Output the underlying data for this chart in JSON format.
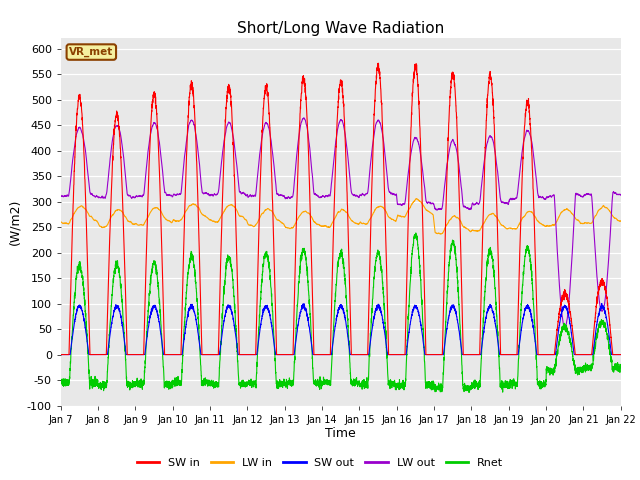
{
  "title": "Short/Long Wave Radiation",
  "xlabel": "Time",
  "ylabel": "(W/m2)",
  "ylim": [
    -100,
    620
  ],
  "colors": {
    "SW_in": "#ff0000",
    "LW_in": "#ffa500",
    "SW_out": "#0000ff",
    "LW_out": "#9900cc",
    "Rnet": "#00cc00"
  },
  "legend_labels": [
    "SW in",
    "LW in",
    "SW out",
    "LW out",
    "Rnet"
  ],
  "yticks": [
    -100,
    -50,
    0,
    50,
    100,
    150,
    200,
    250,
    300,
    350,
    400,
    450,
    500,
    550,
    600
  ],
  "xtick_labels": [
    "Jan 7",
    "Jan 8",
    "Jan 9",
    "Jan 10",
    "Jan 11",
    "Jan 12",
    "Jan 13",
    "Jan 14",
    "Jan 15",
    "Jan 16",
    "Jan 17",
    "Jan 18",
    "Jan 19",
    "Jan 20",
    "Jan 21",
    "Jan 22"
  ],
  "annotation_text": "VR_met",
  "plot_bg_color": "#e8e8e8",
  "fig_bg_color": "#ffffff",
  "n_days": 15,
  "pts_per_day": 288,
  "SW_in_peaks": [
    505,
    470,
    510,
    530,
    525,
    525,
    540,
    535,
    565,
    565,
    550,
    545,
    495,
    120,
    145
  ],
  "LW_in_base": [
    265,
    258,
    262,
    270,
    268,
    260,
    255,
    258,
    265,
    278,
    245,
    250,
    255,
    260,
    265
  ],
  "LW_out_base": [
    315,
    312,
    315,
    318,
    318,
    315,
    313,
    315,
    318,
    300,
    290,
    300,
    310,
    315,
    318
  ],
  "LW_out_peaks": [
    440,
    445,
    450,
    455,
    450,
    450,
    460,
    455,
    455,
    420,
    415,
    425,
    435,
    50,
    80
  ],
  "night_rnet": [
    -55,
    -60,
    -57,
    -55,
    -58,
    -57,
    -56,
    -55,
    -58,
    -60,
    -65,
    -60,
    -58,
    -30,
    -25
  ]
}
